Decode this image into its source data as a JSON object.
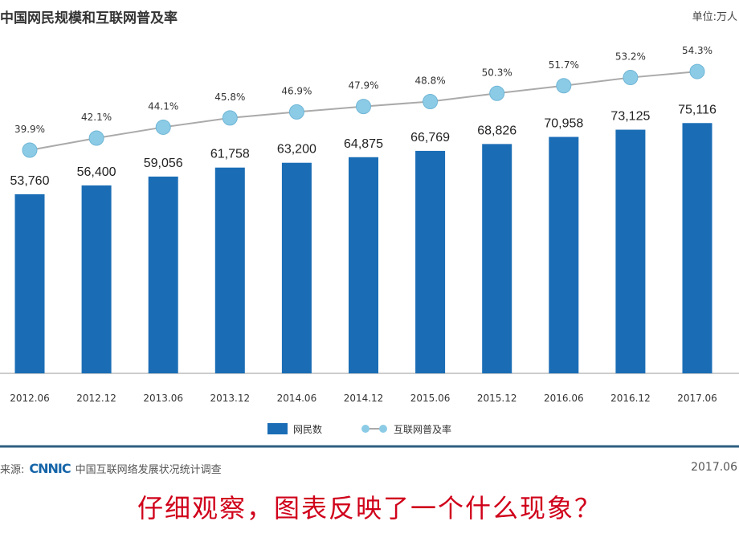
{
  "chart_data": {
    "type": "bar",
    "title": "中国网民规模和互联网普及率",
    "unit": "单位:万人",
    "categories": [
      "2012.06",
      "2012.12",
      "2013.06",
      "2013.12",
      "2014.06",
      "2014.12",
      "2015.06",
      "2015.12",
      "2016.06",
      "2016.12",
      "2017.06"
    ],
    "series": [
      {
        "name": "网民数",
        "type": "bar",
        "values": [
          53760,
          56400,
          59056,
          61758,
          63200,
          64875,
          66769,
          68826,
          70958,
          73125,
          75116
        ],
        "labels": [
          "53,760",
          "56,400",
          "59,056",
          "61,758",
          "63,200",
          "64,875",
          "66,769",
          "68,826",
          "70,958",
          "73,125",
          "75,116"
        ],
        "color": "#1a6db5"
      },
      {
        "name": "互联网普及率",
        "type": "line",
        "values": [
          39.9,
          42.1,
          44.1,
          45.8,
          46.9,
          47.9,
          48.8,
          50.3,
          51.7,
          53.2,
          54.3
        ],
        "labels": [
          "39.9%",
          "42.1%",
          "44.1%",
          "45.8%",
          "46.9%",
          "47.9%",
          "48.8%",
          "50.3%",
          "51.7%",
          "53.2%",
          "54.3%"
        ],
        "color": "#8ccbe6"
      }
    ],
    "legend": "bottom",
    "grid": false
  },
  "footer": {
    "source_prefix": "来源:",
    "source_logo": "CNNIC",
    "source_text": "中国互联网络发展状况统计调查",
    "date": "2017.06"
  },
  "question": "仔细观察，图表反映了一个什么现象？"
}
